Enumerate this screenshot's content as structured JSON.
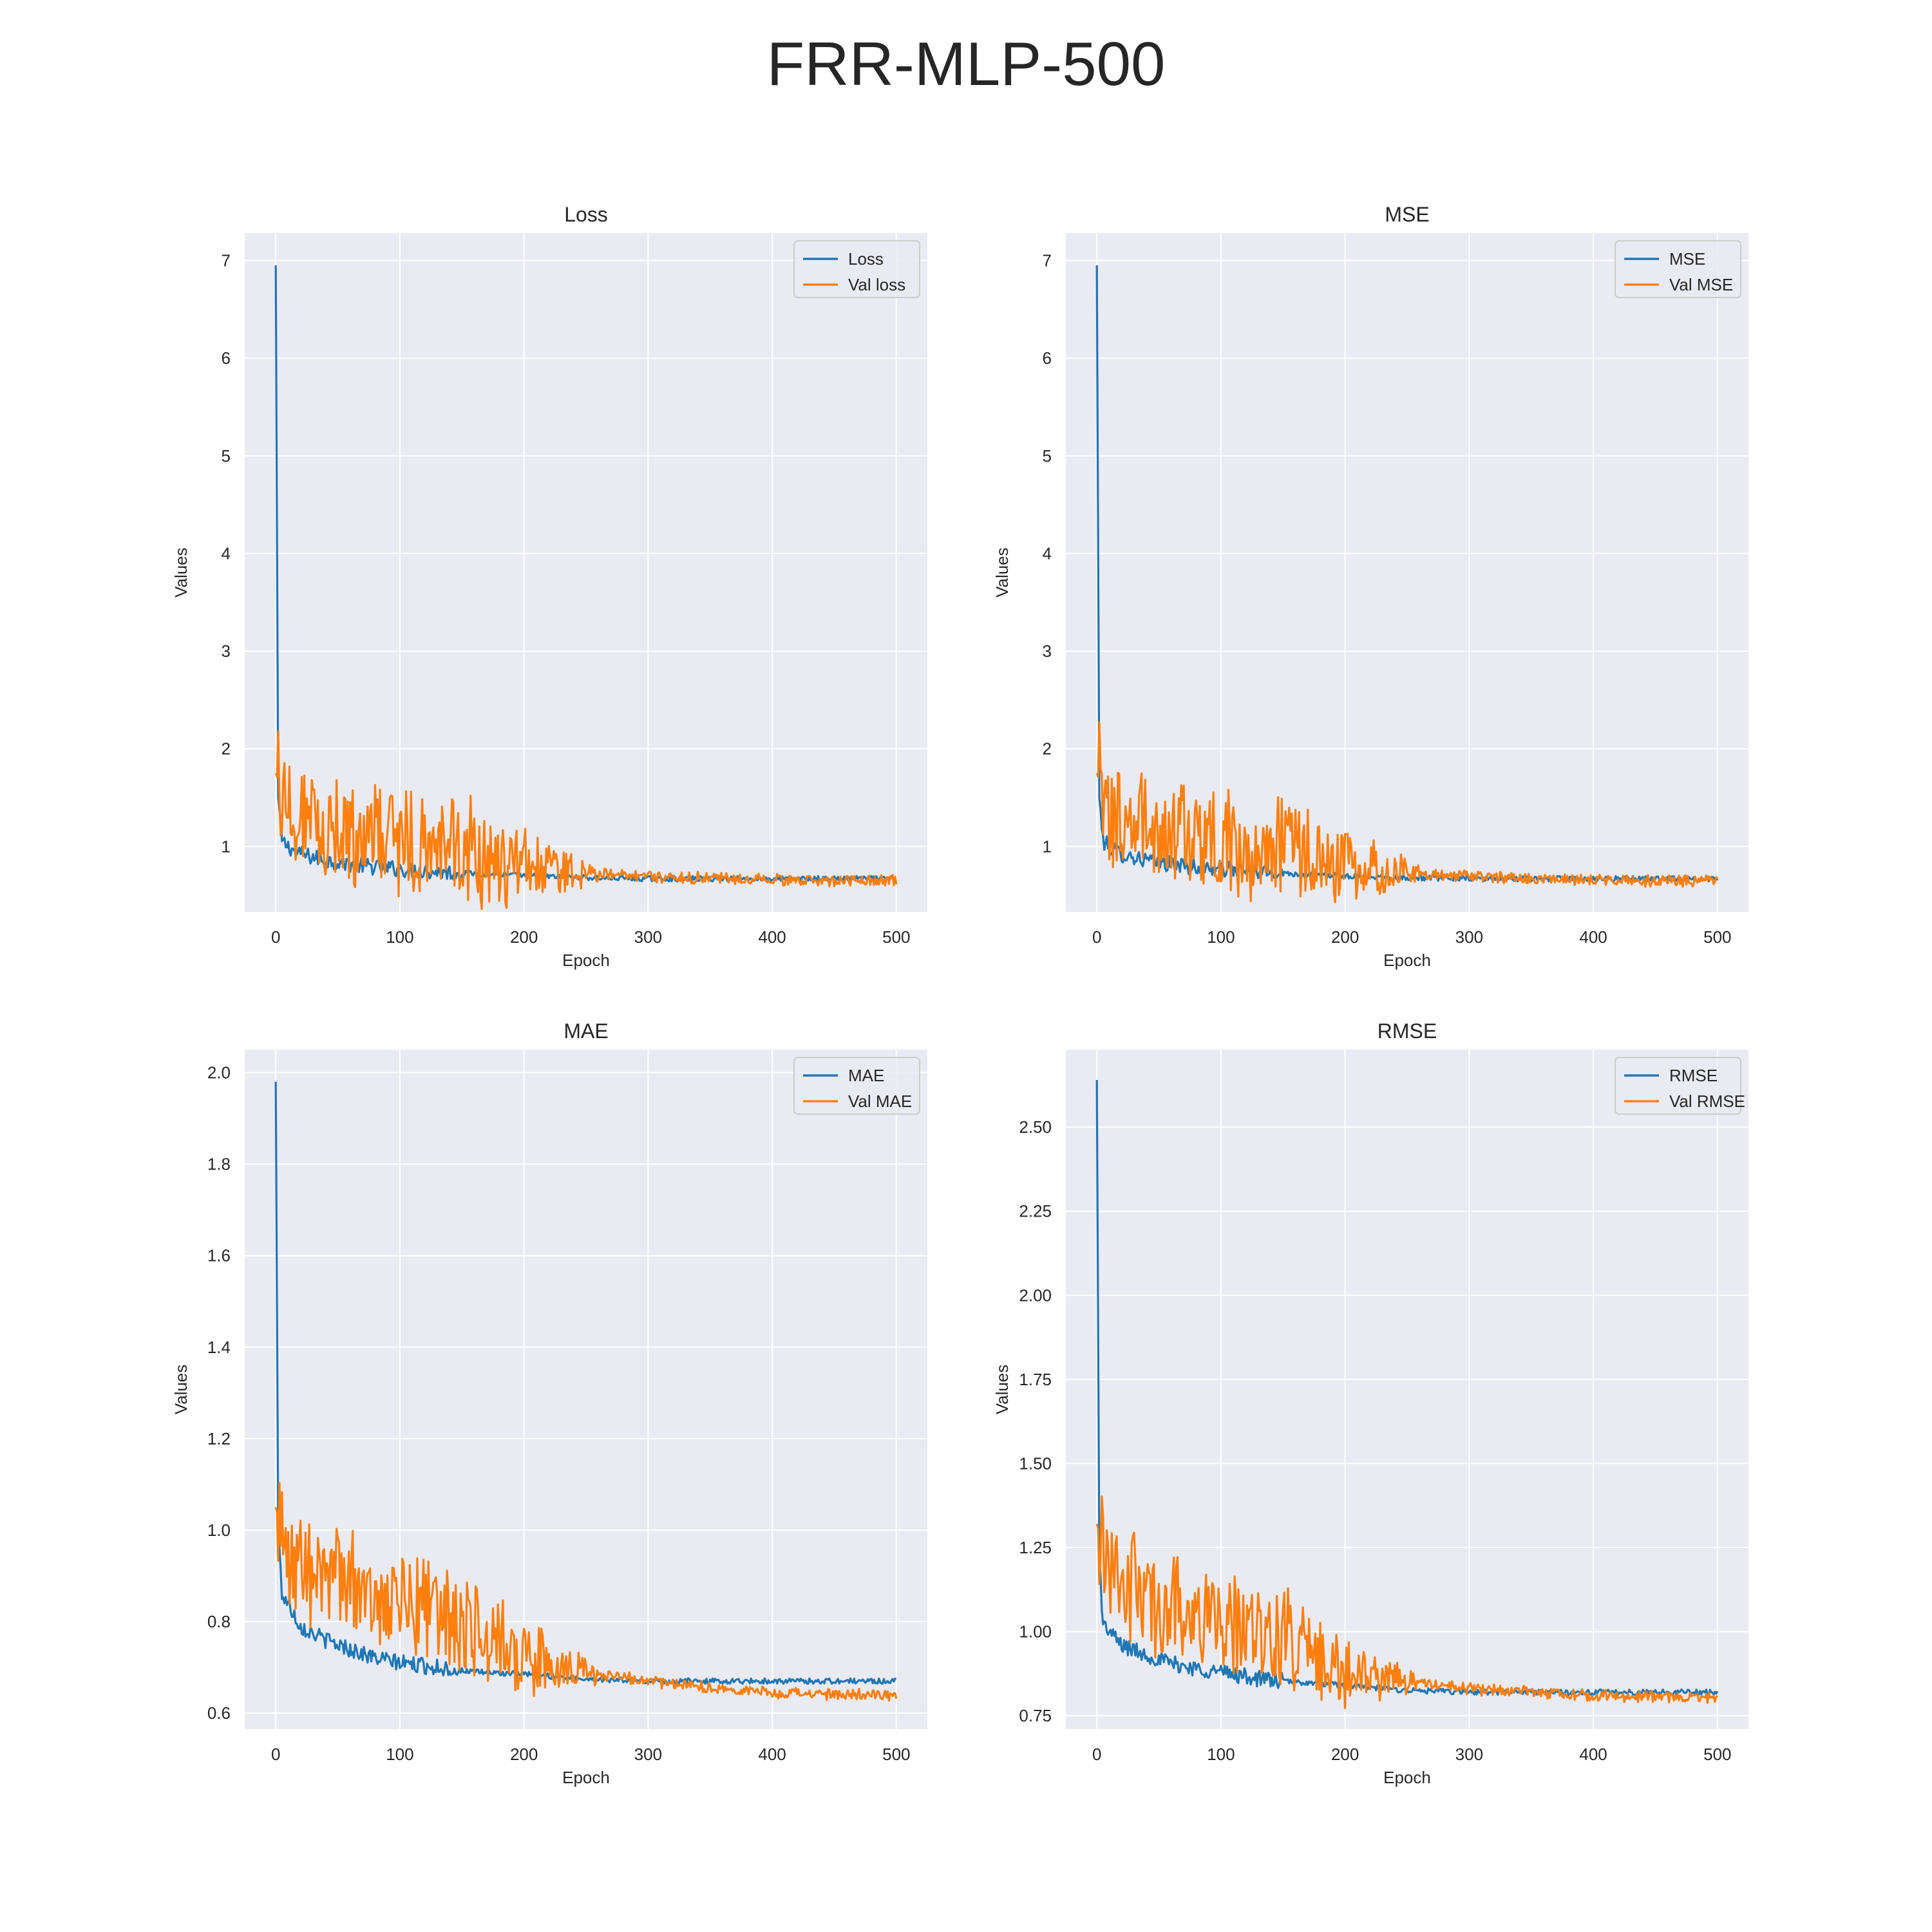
{
  "figure": {
    "title": "FRR-MLP-500"
  },
  "colors": {
    "train": "#1f77b4",
    "val": "#ff7f0e",
    "axes_bg": "#eaeaf2",
    "grid": "#ffffff"
  },
  "chart_data": [
    {
      "type": "line",
      "title": "Loss",
      "xlabel": "Epoch",
      "ylabel": "Values",
      "xlim": [
        -25,
        525
      ],
      "ylim": [
        0.33,
        7.28
      ],
      "xticks": [
        0,
        100,
        200,
        300,
        400,
        500
      ],
      "yticks": [
        1,
        2,
        3,
        4,
        5,
        6,
        7
      ],
      "ytick_labels": [
        "1",
        "2",
        "3",
        "4",
        "5",
        "6",
        "7"
      ],
      "grid": true,
      "legend": "upper right",
      "series": [
        {
          "name": "Loss",
          "color": "#1f77b4",
          "role": "train",
          "x": [
            0,
            2,
            5,
            10,
            20,
            40,
            60,
            80,
            100,
            130,
            160,
            200,
            250,
            300,
            400,
            500
          ],
          "y": [
            6.95,
            1.5,
            1.05,
            1.0,
            0.92,
            0.86,
            0.82,
            0.79,
            0.77,
            0.74,
            0.72,
            0.7,
            0.68,
            0.67,
            0.67,
            0.67
          ]
        },
        {
          "name": "Val loss",
          "color": "#ff7f0e",
          "role": "val",
          "x": [
            0,
            10,
            20,
            40,
            60,
            80,
            100,
            130,
            160,
            180,
            200,
            230,
            260,
            300,
            350,
            400,
            450,
            500
          ],
          "y": [
            1.75,
            1.4,
            1.3,
            1.2,
            1.15,
            1.1,
            1.05,
            1.0,
            0.95,
            0.87,
            0.82,
            0.76,
            0.72,
            0.69,
            0.67,
            0.66,
            0.65,
            0.65
          ]
        }
      ]
    },
    {
      "type": "line",
      "title": "MSE",
      "xlabel": "Epoch",
      "ylabel": "Values",
      "xlim": [
        -25,
        525
      ],
      "ylim": [
        0.33,
        7.28
      ],
      "xticks": [
        0,
        100,
        200,
        300,
        400,
        500
      ],
      "yticks": [
        1,
        2,
        3,
        4,
        5,
        6,
        7
      ],
      "ytick_labels": [
        "1",
        "2",
        "3",
        "4",
        "5",
        "6",
        "7"
      ],
      "grid": true,
      "legend": "upper right",
      "series": [
        {
          "name": "MSE",
          "color": "#1f77b4",
          "role": "train",
          "x": [
            0,
            2,
            5,
            10,
            20,
            40,
            60,
            80,
            100,
            130,
            160,
            200,
            250,
            300,
            400,
            500
          ],
          "y": [
            6.95,
            1.5,
            1.05,
            1.0,
            0.92,
            0.86,
            0.82,
            0.79,
            0.77,
            0.74,
            0.72,
            0.7,
            0.68,
            0.67,
            0.67,
            0.67
          ]
        },
        {
          "name": "Val MSE",
          "color": "#ff7f0e",
          "role": "val",
          "x": [
            0,
            10,
            20,
            40,
            60,
            80,
            100,
            130,
            160,
            180,
            200,
            230,
            260,
            300,
            350,
            400,
            450,
            500
          ],
          "y": [
            1.75,
            1.4,
            1.3,
            1.2,
            1.15,
            1.1,
            1.05,
            1.0,
            0.95,
            0.87,
            0.82,
            0.76,
            0.72,
            0.69,
            0.67,
            0.66,
            0.65,
            0.65
          ]
        }
      ]
    },
    {
      "type": "line",
      "title": "MAE",
      "xlabel": "Epoch",
      "ylabel": "Values",
      "xlim": [
        -25,
        525
      ],
      "ylim": [
        0.565,
        2.05
      ],
      "xticks": [
        0,
        100,
        200,
        300,
        400,
        500
      ],
      "yticks": [
        0.6,
        0.8,
        1.0,
        1.2,
        1.4,
        1.6,
        1.8,
        2.0
      ],
      "ytick_labels": [
        "0.6",
        "0.8",
        "1.0",
        "1.2",
        "1.4",
        "1.6",
        "1.8",
        "2.0"
      ],
      "grid": true,
      "legend": "upper right",
      "series": [
        {
          "name": "MAE",
          "color": "#1f77b4",
          "role": "train",
          "x": [
            0,
            2,
            5,
            10,
            20,
            40,
            60,
            80,
            100,
            130,
            160,
            200,
            250,
            300,
            350,
            400,
            450,
            500
          ],
          "y": [
            1.98,
            1.0,
            0.86,
            0.84,
            0.79,
            0.76,
            0.74,
            0.72,
            0.71,
            0.7,
            0.69,
            0.685,
            0.675,
            0.67,
            0.67,
            0.67,
            0.67,
            0.67
          ]
        },
        {
          "name": "Val MAE",
          "color": "#ff7f0e",
          "role": "val",
          "x": [
            0,
            10,
            20,
            40,
            60,
            80,
            100,
            130,
            160,
            180,
            200,
            230,
            260,
            300,
            350,
            400,
            450,
            500
          ],
          "y": [
            1.05,
            0.95,
            0.92,
            0.9,
            0.88,
            0.86,
            0.84,
            0.81,
            0.78,
            0.75,
            0.72,
            0.7,
            0.685,
            0.67,
            0.655,
            0.645,
            0.64,
            0.64
          ]
        }
      ]
    },
    {
      "type": "line",
      "title": "RMSE",
      "xlabel": "Epoch",
      "ylabel": "Values",
      "xlim": [
        -25,
        525
      ],
      "ylim": [
        0.71,
        2.73
      ],
      "xticks": [
        0,
        100,
        200,
        300,
        400,
        500
      ],
      "yticks": [
        0.75,
        1.0,
        1.25,
        1.5,
        1.75,
        2.0,
        2.25,
        2.5
      ],
      "ytick_labels": [
        "0.75",
        "1.00",
        "1.25",
        "1.50",
        "1.75",
        "2.00",
        "2.25",
        "2.50"
      ],
      "grid": true,
      "legend": "upper right",
      "series": [
        {
          "name": "RMSE",
          "color": "#1f77b4",
          "role": "train",
          "x": [
            0,
            2,
            5,
            10,
            20,
            40,
            60,
            80,
            100,
            130,
            160,
            200,
            250,
            300,
            400,
            500
          ],
          "y": [
            2.64,
            1.22,
            1.02,
            1.0,
            0.96,
            0.93,
            0.905,
            0.89,
            0.88,
            0.86,
            0.85,
            0.84,
            0.825,
            0.82,
            0.82,
            0.82
          ]
        },
        {
          "name": "Val RMSE",
          "color": "#ff7f0e",
          "role": "val",
          "x": [
            0,
            10,
            20,
            40,
            60,
            80,
            100,
            130,
            160,
            180,
            200,
            230,
            260,
            300,
            350,
            400,
            450,
            500
          ],
          "y": [
            1.32,
            1.18,
            1.14,
            1.1,
            1.07,
            1.05,
            1.02,
            1.0,
            0.97,
            0.93,
            0.9,
            0.87,
            0.85,
            0.83,
            0.82,
            0.81,
            0.805,
            0.805
          ]
        }
      ]
    }
  ]
}
